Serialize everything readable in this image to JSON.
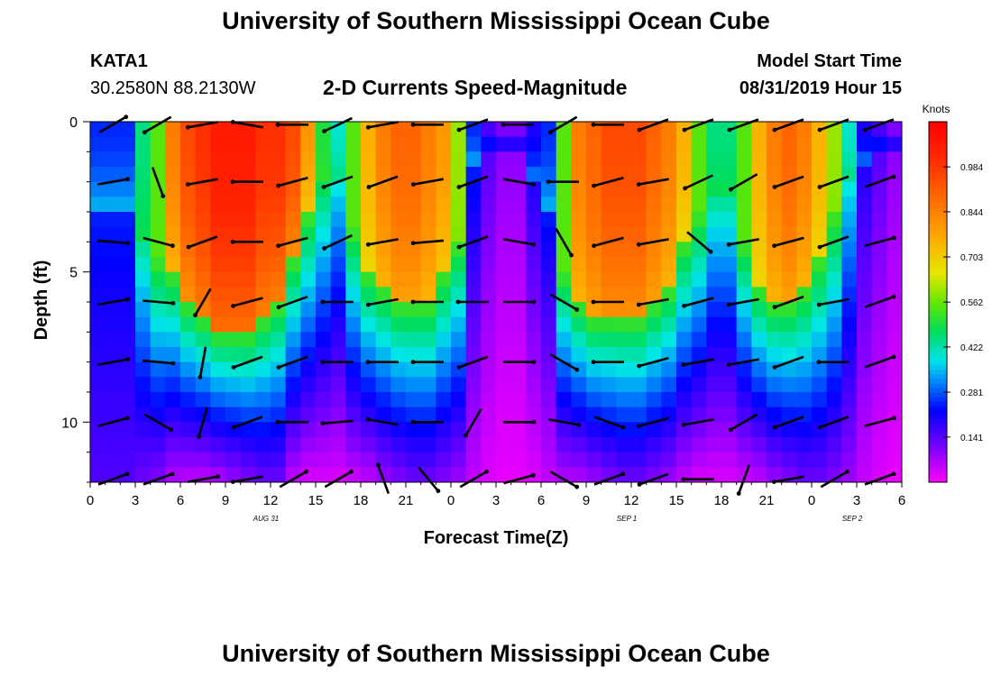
{
  "header": {
    "title": "University of Southern Mississippi Ocean Cube",
    "station": "KATA1",
    "coordinates": "30.2580N 88.2130W",
    "plot_title": "2-D Currents Speed-Magnitude",
    "model_start_label": "Model Start Time",
    "model_start_value": "08/31/2019 Hour 15"
  },
  "footer": {
    "title": "University of Southern Mississippi Ocean Cube"
  },
  "chart_data": {
    "type": "heatmap",
    "title": "2-D Currents Speed-Magnitude",
    "xlabel": "Forecast Time(Z)",
    "ylabel": "Depth (ft)",
    "x_tick_labels": [
      "0",
      "3",
      "6",
      "9",
      "12",
      "15",
      "18",
      "21",
      "0",
      "3",
      "6",
      "9",
      "12",
      "15",
      "18",
      "21",
      "0",
      "3",
      "6"
    ],
    "x_range_hours": [
      0,
      54
    ],
    "y_ticks": [
      0,
      5,
      10
    ],
    "y_tick_labels": [
      "0",
      "5",
      "10"
    ],
    "y_range_ft": [
      0,
      12
    ],
    "date_labels": [
      {
        "text": "AUG 31",
        "hour": 12
      },
      {
        "text": "SEP 1",
        "hour": 36
      },
      {
        "text": "SEP 2",
        "hour": 51
      }
    ],
    "colorbar": {
      "units": "Knots",
      "range": [
        0,
        1.125
      ],
      "tick_values": [
        0.141,
        0.281,
        0.422,
        0.562,
        0.703,
        0.844,
        0.984
      ],
      "tick_labels": [
        "0.141",
        "0.281",
        "0.422",
        "0.562",
        "0.703",
        "0.844",
        "0.984"
      ]
    },
    "speed_pattern": {
      "time_hours": [
        0,
        2,
        3,
        4,
        5,
        6,
        7,
        8,
        9,
        10,
        11,
        12,
        13,
        14,
        15,
        16,
        17,
        18,
        19,
        20,
        21,
        22,
        23,
        24,
        25,
        26,
        27,
        28,
        29,
        30,
        31,
        32,
        33,
        34,
        35,
        36,
        37,
        38,
        39,
        40,
        41,
        42,
        43,
        44,
        45,
        46,
        47,
        48,
        49,
        50,
        51,
        52,
        53,
        54
      ],
      "surface_speed_knots": [
        0.25,
        0.25,
        0.45,
        0.55,
        0.85,
        0.95,
        1.0,
        1.05,
        1.05,
        1.05,
        1.0,
        1.0,
        0.95,
        0.8,
        0.5,
        0.4,
        0.55,
        0.75,
        0.85,
        0.9,
        0.9,
        0.85,
        0.8,
        0.6,
        0.25,
        0.15,
        0.1,
        0.1,
        0.2,
        0.25,
        0.55,
        0.85,
        0.9,
        0.95,
        0.95,
        0.95,
        0.9,
        0.85,
        0.75,
        0.55,
        0.45,
        0.45,
        0.55,
        0.75,
        0.85,
        0.9,
        0.85,
        0.75,
        0.6,
        0.4,
        0.2,
        0.15,
        0.1,
        0.1
      ],
      "tongue_depth_ft": [
        3,
        3,
        4,
        4.5,
        5,
        6,
        6.5,
        7,
        7,
        7,
        6.5,
        6,
        4.5,
        3,
        2,
        2,
        3.5,
        5,
        5.5,
        6,
        6,
        6,
        5,
        4,
        1.5,
        1,
        1,
        1,
        2,
        3,
        5,
        6,
        6.5,
        6.5,
        6.5,
        6.5,
        6,
        5.5,
        4,
        3,
        2.5,
        2.5,
        4,
        5.5,
        6,
        6,
        5.5,
        4.5,
        3,
        2,
        1.5,
        1,
        1,
        1
      ],
      "bottom_speed_knots": [
        0.15,
        0.15,
        0.12,
        0.1,
        0.06,
        0.05,
        0.05,
        0.06,
        0.08,
        0.1,
        0.12,
        0.12,
        0.05,
        0.03,
        0.03,
        0.03,
        0.04,
        0.05,
        0.08,
        0.1,
        0.12,
        0.12,
        0.1,
        0.08,
        0.05,
        0.03,
        0.02,
        0.02,
        0.03,
        0.05,
        0.06,
        0.06,
        0.08,
        0.1,
        0.12,
        0.12,
        0.1,
        0.08,
        0.05,
        0.03,
        0.03,
        0.03,
        0.04,
        0.05,
        0.08,
        0.1,
        0.12,
        0.12,
        0.1,
        0.08,
        0.05,
        0.03,
        0.02,
        0.02
      ]
    },
    "current_vectors": {
      "depths_ft": [
        0.1,
        2.0,
        4.0,
        6.0,
        8.0,
        10.0,
        11.9
      ],
      "columns": [
        {
          "hour": 0,
          "dirs": [
            60,
            80,
            95,
            80,
            80,
            75,
            70
          ]
        },
        {
          "hour": 3,
          "dirs": [
            240,
            160,
            105,
            95,
            95,
            120,
            70
          ]
        },
        {
          "hour": 6,
          "dirs": [
            260,
            260,
            250,
            210,
            190,
            195,
            80
          ]
        },
        {
          "hour": 9,
          "dirs": [
            280,
            270,
            270,
            255,
            250,
            250,
            260
          ]
        },
        {
          "hour": 12,
          "dirs": [
            270,
            255,
            255,
            250,
            250,
            270,
            60
          ]
        },
        {
          "hour": 15,
          "dirs": [
            245,
            250,
            245,
            270,
            270,
            265,
            60
          ]
        },
        {
          "hour": 18,
          "dirs": [
            260,
            250,
            260,
            260,
            270,
            280,
            340
          ]
        },
        {
          "hour": 21,
          "dirs": [
            270,
            260,
            265,
            270,
            270,
            270,
            140
          ]
        },
        {
          "hour": 24,
          "dirs": [
            250,
            250,
            250,
            270,
            250,
            210,
            60
          ]
        },
        {
          "hour": 27,
          "dirs": [
            270,
            100,
            100,
            90,
            90,
            90,
            75
          ]
        },
        {
          "hour": 30,
          "dirs": [
            240,
            270,
            150,
            120,
            120,
            100,
            120
          ]
        },
        {
          "hour": 33,
          "dirs": [
            270,
            255,
            255,
            270,
            270,
            110,
            70
          ]
        },
        {
          "hour": 36,
          "dirs": [
            250,
            260,
            260,
            260,
            255,
            255,
            250
          ]
        },
        {
          "hour": 39,
          "dirs": [
            250,
            245,
            130,
            255,
            260,
            260,
            270
          ]
        },
        {
          "hour": 42,
          "dirs": [
            250,
            240,
            260,
            260,
            260,
            240,
            200
          ]
        },
        {
          "hour": 45,
          "dirs": [
            250,
            250,
            255,
            250,
            250,
            250,
            260
          ]
        },
        {
          "hour": 48,
          "dirs": [
            250,
            250,
            250,
            260,
            270,
            250,
            60
          ]
        },
        {
          "hour": 51,
          "dirs": [
            250,
            70,
            75,
            70,
            70,
            75,
            70
          ]
        }
      ]
    }
  }
}
